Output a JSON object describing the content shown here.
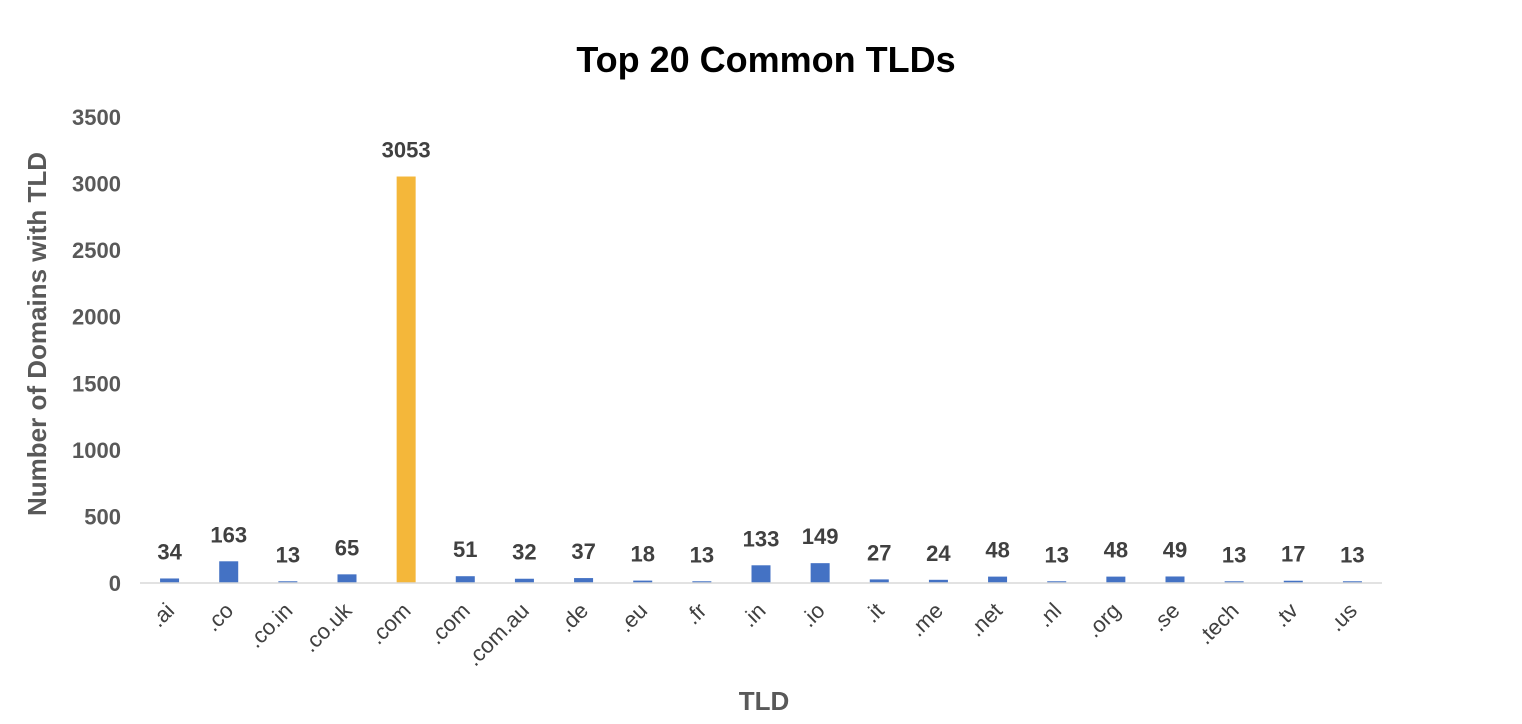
{
  "chart_data": {
    "type": "bar",
    "title": "Top 20 Common TLDs",
    "xlabel": "TLD",
    "ylabel": "Number of Domains with TLD",
    "categories": [
      ".ai",
      ".co",
      ".co.in",
      ".co.uk",
      ".com",
      ".com",
      ".com.au",
      ".de",
      ".eu",
      ".fr",
      ".in",
      ".io",
      ".it",
      ".me",
      ".net",
      ".nl",
      ".org",
      ".se",
      ".tech",
      ".tv",
      ".us"
    ],
    "values": [
      34,
      163,
      13,
      65,
      3053,
      51,
      32,
      37,
      18,
      13,
      133,
      149,
      27,
      24,
      48,
      13,
      48,
      49,
      13,
      17,
      13
    ],
    "ylim": [
      0,
      3500
    ],
    "yticks": [
      0,
      500,
      1000,
      1500,
      2000,
      2500,
      3000,
      3500
    ],
    "highlight_index": 4,
    "grid": false,
    "legend": "none",
    "colors": {
      "bar": "#4472C4",
      "highlight": "#F4B73A",
      "axis": "#D9D9D9"
    }
  }
}
